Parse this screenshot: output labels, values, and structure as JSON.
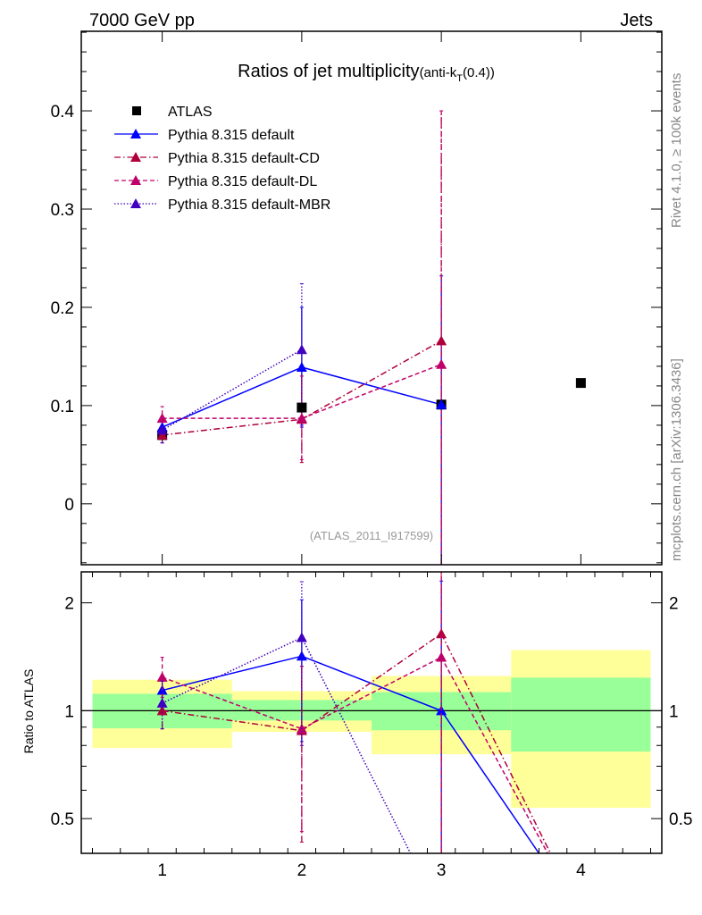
{
  "header": {
    "left": "7000 GeV pp",
    "right": "Jets"
  },
  "side_labels": {
    "rivet": "Rivet 4.1.0, ≥ 100k events",
    "mcplots": "mcplots.cern.ch [arXiv:1306.3436]"
  },
  "analysis_tag": "(ATLAS_2011_I917599)",
  "chart_data": [
    {
      "type": "scatter",
      "title": "Ratios of jet multiplicity",
      "title_suffix": "(anti-k",
      "title_sub": "T",
      "title_end": "(0.4))",
      "xlabel": "",
      "ylabel": "",
      "xlim": [
        0.42,
        4.58
      ],
      "ylim": [
        -0.062,
        0.481
      ],
      "x_ticks": [
        1,
        2,
        3,
        4
      ],
      "x_tick_labels": [
        "1",
        "2",
        "3",
        "4"
      ],
      "y_ticks": [
        0,
        0.1,
        0.2,
        0.3,
        0.4
      ],
      "y_tick_labels": [
        "0",
        "0.1",
        "0.2",
        "0.3",
        "0.4"
      ],
      "legend_position": "top-left",
      "x": [
        1,
        2,
        3,
        4
      ],
      "reference": {
        "name": "ATLAS",
        "values": [
          0.07,
          0.098,
          0.101,
          0.123
        ],
        "color": "#000000"
      },
      "series": [
        {
          "name": "Pythia 8.315 default",
          "color": "#0000ff",
          "style": "solid",
          "values": [
            0.078,
            0.139,
            0.101,
            null
          ],
          "err_lo": [
            0.071,
            0.078,
            -0.062,
            null
          ],
          "err_hi": [
            0.087,
            0.2,
            0.232,
            null
          ]
        },
        {
          "name": "Pythia 8.315 default-CD",
          "color": "#b0003a",
          "style": "dashdot",
          "values": [
            0.07,
            0.086,
            0.166,
            null
          ],
          "err_lo": [
            0.062,
            0.042,
            -0.062,
            null
          ],
          "err_hi": [
            0.078,
            0.13,
            0.4,
            null
          ]
        },
        {
          "name": "Pythia 8.315 default-DL",
          "color": "#c0006a",
          "style": "dashed",
          "values": [
            0.087,
            0.087,
            0.142,
            null
          ],
          "err_lo": [
            0.076,
            0.045,
            -0.062,
            null
          ],
          "err_hi": [
            0.099,
            0.13,
            0.4,
            null
          ]
        },
        {
          "name": "Pythia 8.315 default-MBR",
          "color": "#4000c0",
          "style": "dotted",
          "values": [
            0.075,
            0.157,
            null,
            null
          ],
          "err_lo": [
            0.062,
            0.08,
            null,
            null
          ],
          "err_hi": [
            0.085,
            0.224,
            null,
            null
          ]
        }
      ]
    },
    {
      "type": "line",
      "ylabel": "Ratio to ATLAS",
      "scale": "log",
      "xlim": [
        0.42,
        4.58
      ],
      "ylim": [
        0.4,
        2.44
      ],
      "y_ticks": [
        0.5,
        1,
        2
      ],
      "y_tick_labels": [
        "0.5",
        "1",
        "2"
      ],
      "x": [
        1,
        2,
        3,
        4
      ],
      "bins": [
        [
          0.5,
          1.5
        ],
        [
          1.5,
          2.5
        ],
        [
          2.5,
          3.5
        ],
        [
          3.5,
          4.5
        ]
      ],
      "band_inner": {
        "color": "#99ff99",
        "lo": [
          0.893,
          0.939,
          0.882,
          0.769
        ],
        "hi": [
          1.115,
          1.071,
          1.127,
          1.237
        ]
      },
      "band_outer": {
        "color": "#ffff99",
        "lo": [
          0.787,
          0.873,
          0.756,
          0.536
        ],
        "hi": [
          1.22,
          1.134,
          1.25,
          1.476
        ]
      },
      "series": [
        {
          "name": "Pythia 8.315 default",
          "values": [
            1.14,
            1.42,
            1.0,
            0.27
          ],
          "err_lo": [
            1.01,
            0.8,
            0.01,
            null
          ],
          "err_hi": [
            1.24,
            2.04,
            2.3,
            null
          ]
        },
        {
          "name": "Pythia 8.315 default-CD",
          "values": [
            1.0,
            0.88,
            1.64,
            0.27
          ],
          "err_lo": [
            0.89,
            0.43,
            0.01,
            null
          ],
          "err_hi": [
            1.11,
            1.33,
            3.96,
            null
          ]
        },
        {
          "name": "Pythia 8.315 default-DL",
          "values": [
            1.24,
            0.89,
            1.41,
            0.27
          ],
          "err_lo": [
            1.09,
            0.46,
            0.01,
            null
          ],
          "err_hi": [
            1.41,
            1.33,
            3.96,
            null
          ]
        },
        {
          "name": "Pythia 8.315 default-MBR",
          "values": [
            1.05,
            1.6,
            0.27,
            null
          ],
          "err_lo": [
            0.89,
            0.82,
            null,
            null
          ],
          "err_hi": [
            1.21,
            2.29,
            null,
            null
          ]
        }
      ]
    }
  ]
}
